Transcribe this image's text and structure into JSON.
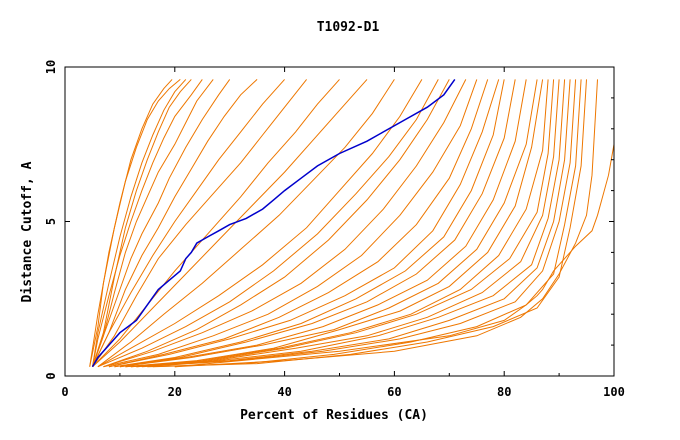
{
  "chart_data": {
    "type": "line",
    "title": "T1092-D1",
    "xlabel": "Percent of Residues (CA)",
    "ylabel": "Distance Cutoff, A",
    "xlim": [
      0,
      100
    ],
    "ylim": [
      0,
      10
    ],
    "x_ticks": [
      0,
      20,
      40,
      60,
      80,
      100
    ],
    "y_ticks": [
      0,
      5,
      10
    ],
    "grid": false,
    "legend": "none",
    "colors": {
      "orange": "#ee7700",
      "blue": "#0000cc"
    },
    "highlight": {
      "x": [
        5,
        6,
        8,
        10,
        13,
        15,
        17,
        19,
        21,
        22,
        23,
        24,
        26,
        28,
        30,
        33,
        36,
        38,
        40,
        43,
        46,
        50,
        55,
        58,
        62,
        66,
        69,
        71
      ],
      "y": [
        0.3,
        0.6,
        1.0,
        1.4,
        1.8,
        2.3,
        2.8,
        3.1,
        3.4,
        3.8,
        4.0,
        4.3,
        4.5,
        4.7,
        4.9,
        5.1,
        5.4,
        5.7,
        6.0,
        6.4,
        6.8,
        7.2,
        7.6,
        7.9,
        8.3,
        8.7,
        9.1,
        9.6
      ]
    },
    "series": [
      {
        "x": [
          4.5,
          6,
          8,
          10,
          12,
          14,
          16,
          18,
          19.5
        ],
        "y": [
          0.3,
          2.0,
          4.0,
          5.6,
          7.0,
          8.0,
          8.8,
          9.3,
          9.6
        ]
      },
      {
        "x": [
          4.5,
          6,
          7,
          9,
          11,
          13,
          15,
          17,
          19,
          21
        ],
        "y": [
          0.3,
          1.6,
          3.0,
          4.8,
          6.3,
          7.4,
          8.3,
          8.9,
          9.3,
          9.6
        ]
      },
      {
        "x": [
          5,
          6,
          8,
          10,
          12,
          14,
          16,
          18,
          20,
          22
        ],
        "y": [
          0.3,
          1.4,
          3.0,
          4.5,
          5.8,
          6.9,
          7.8,
          8.6,
          9.2,
          9.6
        ]
      },
      {
        "x": [
          5,
          7,
          9,
          11,
          13,
          15,
          17,
          19,
          21,
          23
        ],
        "y": [
          0.3,
          1.4,
          3.2,
          4.8,
          6.0,
          7.0,
          7.9,
          8.7,
          9.2,
          9.6
        ]
      },
      {
        "x": [
          5,
          6,
          8,
          10,
          12,
          14,
          16,
          18,
          20,
          23,
          25
        ],
        "y": [
          0.3,
          1.2,
          2.6,
          3.9,
          5.0,
          6.0,
          6.9,
          7.7,
          8.4,
          9.1,
          9.6
        ]
      },
      {
        "x": [
          5,
          7,
          9,
          11,
          13,
          15,
          17,
          20,
          22,
          24,
          27
        ],
        "y": [
          0.3,
          1.3,
          2.7,
          4.0,
          5.0,
          5.8,
          6.6,
          7.5,
          8.2,
          8.9,
          9.6
        ]
      },
      {
        "x": [
          5,
          7,
          10,
          12,
          14,
          17,
          19,
          22,
          25,
          28,
          30
        ],
        "y": [
          0.3,
          1.3,
          2.8,
          3.8,
          4.6,
          5.6,
          6.4,
          7.4,
          8.3,
          9.1,
          9.6
        ]
      },
      {
        "x": [
          5,
          8,
          11,
          14,
          17,
          20,
          23,
          26,
          29,
          32,
          35
        ],
        "y": [
          0.3,
          1.4,
          2.8,
          3.9,
          4.8,
          5.8,
          6.7,
          7.6,
          8.4,
          9.1,
          9.6
        ]
      },
      {
        "x": [
          5,
          8,
          12,
          16,
          20,
          24,
          28,
          32,
          36,
          40
        ],
        "y": [
          0.3,
          1.4,
          2.7,
          3.9,
          5.0,
          6.0,
          7.0,
          7.9,
          8.8,
          9.6
        ]
      },
      {
        "x": [
          5,
          9,
          13,
          17,
          22,
          27,
          32,
          36,
          40,
          44
        ],
        "y": [
          0.3,
          1.3,
          2.6,
          3.8,
          4.9,
          5.9,
          6.9,
          7.8,
          8.7,
          9.6
        ]
      },
      {
        "x": [
          5,
          10,
          15,
          20,
          26,
          32,
          37,
          42,
          46,
          50
        ],
        "y": [
          0.3,
          1.2,
          2.3,
          3.4,
          4.6,
          5.8,
          6.9,
          7.9,
          8.8,
          9.6
        ]
      },
      {
        "x": [
          5,
          10,
          16,
          22,
          28,
          34,
          40,
          45,
          50,
          55
        ],
        "y": [
          0.3,
          1.1,
          2.2,
          3.3,
          4.4,
          5.5,
          6.6,
          7.6,
          8.6,
          9.6
        ]
      },
      {
        "x": [
          6,
          12,
          18,
          25,
          32,
          39,
          45,
          51,
          56,
          60
        ],
        "y": [
          0.3,
          1.1,
          2.0,
          3.0,
          4.1,
          5.2,
          6.3,
          7.4,
          8.5,
          9.6
        ]
      },
      {
        "x": [
          6,
          12,
          20,
          28,
          36,
          44,
          50,
          56,
          61,
          65
        ],
        "y": [
          0.3,
          0.9,
          1.7,
          2.6,
          3.6,
          4.8,
          6.0,
          7.2,
          8.4,
          9.6
        ]
      },
      {
        "x": [
          6,
          14,
          22,
          30,
          38,
          46,
          53,
          59,
          64,
          68
        ],
        "y": [
          0.3,
          0.9,
          1.6,
          2.4,
          3.4,
          4.6,
          5.9,
          7.1,
          8.3,
          9.6
        ]
      },
      {
        "x": [
          7,
          15,
          24,
          32,
          40,
          48,
          55,
          61,
          66,
          70
        ],
        "y": [
          0.3,
          0.8,
          1.5,
          2.3,
          3.2,
          4.4,
          5.7,
          7.0,
          8.3,
          9.6
        ]
      },
      {
        "x": [
          7,
          16,
          25,
          34,
          43,
          51,
          58,
          64,
          69,
          73
        ],
        "y": [
          0.3,
          0.8,
          1.4,
          2.1,
          3.0,
          4.1,
          5.4,
          6.8,
          8.2,
          9.6
        ]
      },
      {
        "x": [
          7,
          17,
          27,
          37,
          46,
          54,
          61,
          67,
          72,
          75
        ],
        "y": [
          0.3,
          0.7,
          1.3,
          2.0,
          2.9,
          3.9,
          5.2,
          6.6,
          8.1,
          9.6
        ]
      },
      {
        "x": [
          8,
          18,
          29,
          39,
          48,
          57,
          64,
          70,
          74,
          77
        ],
        "y": [
          0.3,
          0.7,
          1.2,
          1.9,
          2.7,
          3.7,
          4.9,
          6.4,
          8.0,
          9.6
        ]
      },
      {
        "x": [
          8,
          19,
          30,
          41,
          51,
          60,
          67,
          72,
          76,
          79
        ],
        "y": [
          0.3,
          0.7,
          1.2,
          1.8,
          2.6,
          3.5,
          4.7,
          6.2,
          7.9,
          9.6
        ]
      },
      {
        "x": [
          9,
          20,
          32,
          43,
          53,
          62,
          69,
          74,
          78,
          80
        ],
        "y": [
          0.3,
          0.6,
          1.1,
          1.7,
          2.5,
          3.4,
          4.5,
          6.0,
          7.8,
          9.6
        ]
      },
      {
        "x": [
          9,
          21,
          33,
          45,
          55,
          64,
          71,
          76,
          80,
          82
        ],
        "y": [
          0.3,
          0.6,
          1.1,
          1.7,
          2.4,
          3.3,
          4.4,
          5.9,
          7.7,
          9.6
        ]
      },
      {
        "x": [
          10,
          22,
          35,
          47,
          57,
          66,
          73,
          78,
          82,
          84
        ],
        "y": [
          0.3,
          0.6,
          1.0,
          1.6,
          2.3,
          3.1,
          4.2,
          5.7,
          7.6,
          9.6
        ]
      },
      {
        "x": [
          10,
          23,
          36,
          49,
          59,
          68,
          75,
          80,
          84,
          86
        ],
        "y": [
          0.3,
          0.6,
          1.0,
          1.5,
          2.2,
          3.0,
          4.1,
          5.6,
          7.5,
          9.6
        ]
      },
      {
        "x": [
          11,
          24,
          38,
          50,
          61,
          70,
          77,
          82,
          85,
          87
        ],
        "y": [
          0.3,
          0.5,
          0.9,
          1.5,
          2.1,
          2.9,
          4.0,
          5.5,
          7.4,
          9.6
        ]
      },
      {
        "x": [
          11,
          25,
          39,
          52,
          63,
          72,
          79,
          84,
          87,
          88
        ],
        "y": [
          0.3,
          0.5,
          0.9,
          1.4,
          2.0,
          2.8,
          3.9,
          5.4,
          7.3,
          9.6
        ]
      },
      {
        "x": [
          12,
          26,
          40,
          53,
          64,
          74,
          81,
          86,
          88,
          89
        ],
        "y": [
          0.3,
          0.5,
          0.9,
          1.4,
          2.0,
          2.8,
          3.8,
          5.3,
          7.2,
          9.6
        ]
      },
      {
        "x": [
          12,
          27,
          42,
          55,
          66,
          76,
          83,
          87,
          89,
          90
        ],
        "y": [
          0.3,
          0.5,
          0.9,
          1.3,
          1.9,
          2.7,
          3.7,
          5.2,
          7.1,
          9.6
        ]
      },
      {
        "x": [
          13,
          28,
          43,
          57,
          68,
          78,
          85,
          88,
          90,
          91
        ],
        "y": [
          0.3,
          0.5,
          0.8,
          1.3,
          1.9,
          2.6,
          3.6,
          5.1,
          7.0,
          9.6
        ]
      },
      {
        "x": [
          13,
          30,
          45,
          59,
          70,
          80,
          86,
          89,
          91,
          92
        ],
        "y": [
          0.3,
          0.5,
          0.8,
          1.2,
          1.8,
          2.5,
          3.5,
          5.0,
          7.0,
          9.6
        ]
      },
      {
        "x": [
          14,
          31,
          47,
          61,
          72,
          82,
          87,
          90,
          92,
          93
        ],
        "y": [
          0.3,
          0.5,
          0.8,
          1.2,
          1.7,
          2.4,
          3.4,
          5.0,
          6.9,
          9.6
        ]
      },
      {
        "x": [
          15,
          33,
          49,
          63,
          75,
          84,
          89,
          91,
          93,
          94
        ],
        "y": [
          0.3,
          0.4,
          0.7,
          1.1,
          1.6,
          2.3,
          3.3,
          4.9,
          6.8,
          9.6
        ]
      },
      {
        "x": [
          16,
          35,
          52,
          66,
          78,
          86,
          90,
          92,
          94,
          95
        ],
        "y": [
          0.3,
          0.4,
          0.7,
          1.1,
          1.6,
          2.2,
          3.2,
          4.8,
          6.8,
          9.6
        ]
      },
      {
        "x": [
          20,
          40,
          60,
          75,
          83,
          87,
          90,
          93,
          95,
          96,
          97
        ],
        "y": [
          0.3,
          0.5,
          0.8,
          1.3,
          1.9,
          2.5,
          3.3,
          4.3,
          5.2,
          6.5,
          9.6
        ]
      },
      {
        "x": [
          20,
          50,
          70,
          80,
          84,
          86,
          87,
          89,
          91,
          93,
          96,
          97,
          99,
          100,
          100
        ],
        "y": [
          0.3,
          0.8,
          1.3,
          1.8,
          2.3,
          2.6,
          2.8,
          3.4,
          3.8,
          4.2,
          4.7,
          5.2,
          6.5,
          7.5,
          9.6
        ]
      }
    ]
  }
}
